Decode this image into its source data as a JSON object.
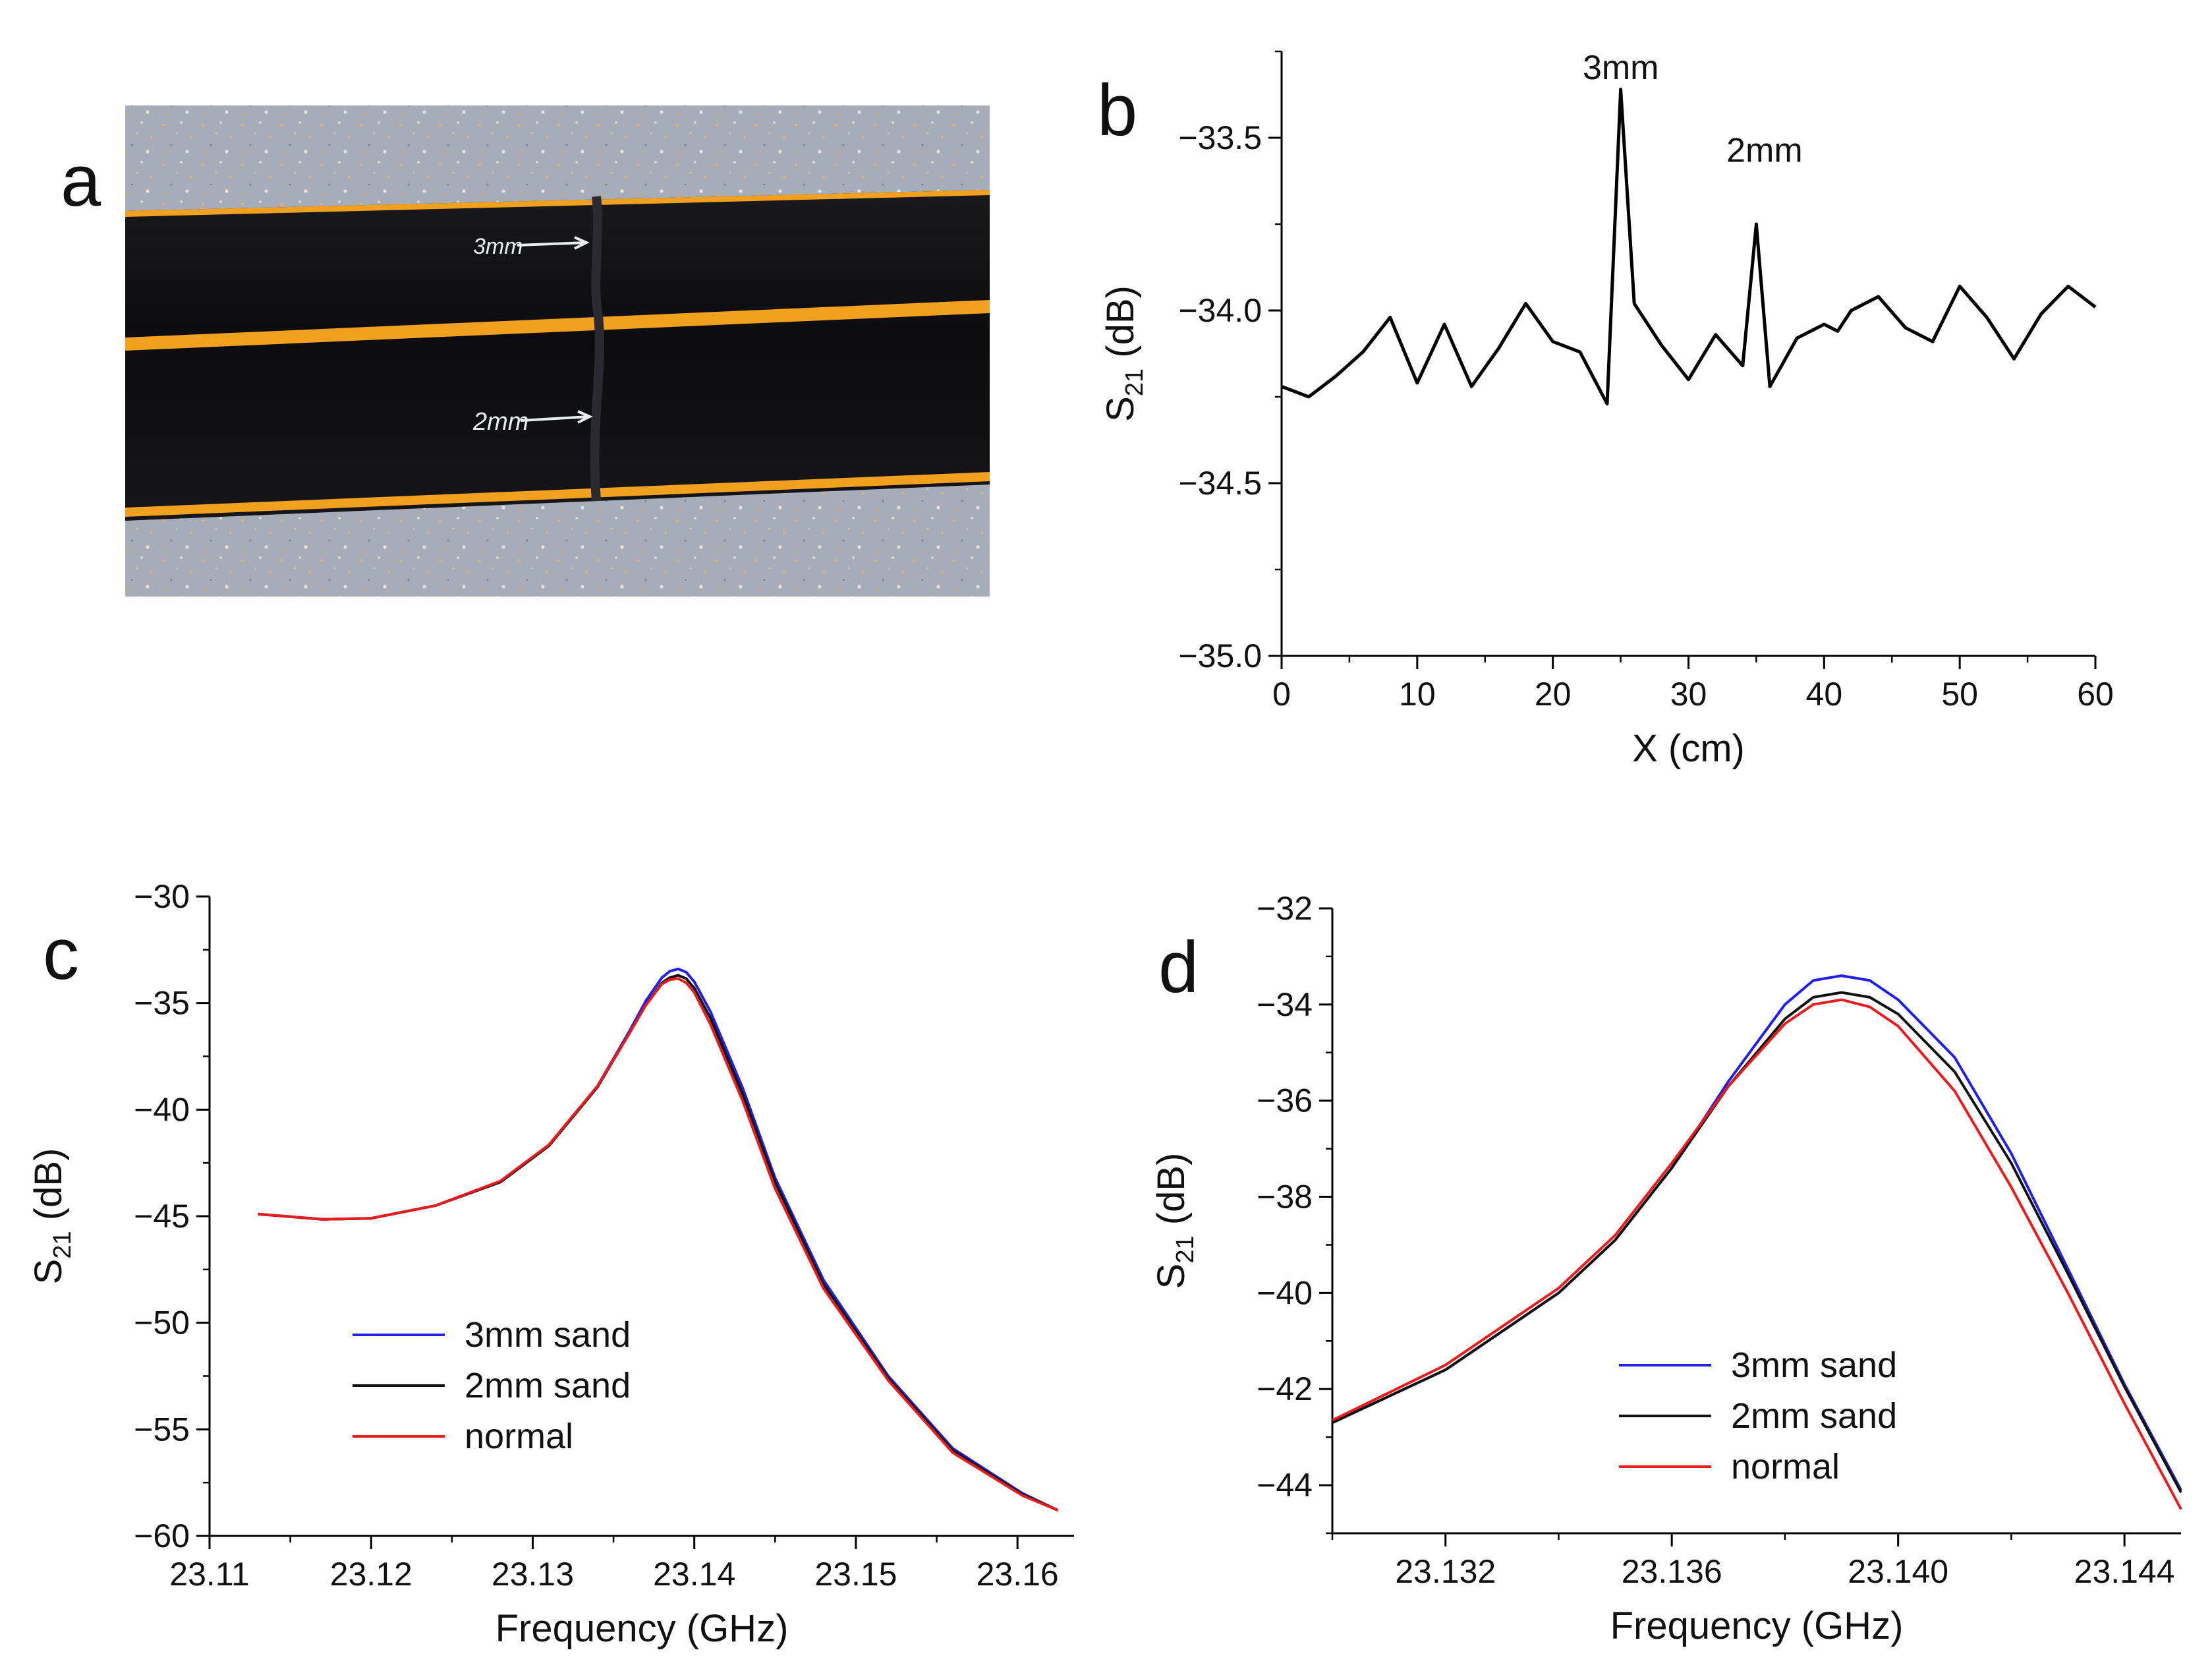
{
  "panel_labels": {
    "a": "a",
    "b": "b",
    "c": "c",
    "d": "d"
  },
  "photo": {
    "annotation_3mm": "3mm",
    "annotation_2mm": "2mm",
    "colors": {
      "background": "#a7adb8",
      "pipe": "#101012",
      "stripe": "#f1a020"
    }
  },
  "chart_data": [
    {
      "id": "b",
      "type": "line",
      "title": "",
      "xlabel": "X (cm)",
      "ylabel_main": "S",
      "ylabel_sub": "21",
      "ylabel_unit": " (dB)",
      "xlim": [
        0,
        60
      ],
      "ylim": [
        -35.0,
        -33.25
      ],
      "xticks": [
        0,
        10,
        20,
        30,
        40,
        50,
        60
      ],
      "xtick_labels": [
        "0",
        "10",
        "20",
        "30",
        "40",
        "50",
        "60"
      ],
      "yticks": [
        -35.0,
        -34.5,
        -34.0,
        -33.5
      ],
      "ytick_labels": [
        "−35.0",
        "−34.5",
        "−34.0",
        "−33.5"
      ],
      "annotations": [
        {
          "text": "3mm",
          "x": 22.2,
          "y": -33.33
        },
        {
          "text": "2mm",
          "x": 32.8,
          "y": -33.57
        }
      ],
      "series": [
        {
          "name": "S21",
          "color": "#000000",
          "x": [
            0,
            2,
            4,
            6,
            8,
            10,
            12,
            14,
            16,
            18,
            20,
            22,
            24,
            25,
            26,
            28,
            30,
            32,
            34,
            35,
            36,
            38,
            40,
            41,
            42,
            44,
            46,
            48,
            50,
            52,
            54,
            56,
            58,
            60
          ],
          "y": [
            -34.22,
            -34.25,
            -34.19,
            -34.12,
            -34.02,
            -34.21,
            -34.04,
            -34.22,
            -34.11,
            -33.98,
            -34.09,
            -34.12,
            -34.27,
            -33.36,
            -33.98,
            -34.1,
            -34.2,
            -34.07,
            -34.16,
            -33.75,
            -34.22,
            -34.08,
            -34.04,
            -34.06,
            -34.0,
            -33.96,
            -34.05,
            -34.09,
            -33.93,
            -34.02,
            -34.14,
            -34.01,
            -33.93,
            -33.99
          ]
        }
      ]
    },
    {
      "id": "c",
      "type": "line",
      "title": "",
      "xlabel": "Frequency (GHz)",
      "ylabel_main": "S",
      "ylabel_sub": "21",
      "ylabel_unit": " (dB)",
      "xlim": [
        23.11,
        23.1635
      ],
      "ylim": [
        -60,
        -30
      ],
      "xticks": [
        23.11,
        23.12,
        23.13,
        23.14,
        23.15,
        23.16
      ],
      "xtick_labels": [
        "23.11",
        "23.12",
        "23.13",
        "23.14",
        "23.15",
        "23.16"
      ],
      "yticks": [
        -60,
        -55,
        -50,
        -45,
        -40,
        -35,
        -30
      ],
      "ytick_labels": [
        "−60",
        "−55",
        "−50",
        "−45",
        "−40",
        "−35",
        "−30"
      ],
      "legend": {
        "position": "lower-left",
        "entries": [
          "3mm sand",
          "2mm sand",
          "normal"
        ]
      },
      "series": [
        {
          "name": "3mm sand",
          "color": "#1f1fe8",
          "x": [
            23.113,
            23.117,
            23.12,
            23.124,
            23.128,
            23.131,
            23.134,
            23.136,
            23.137,
            23.138,
            23.1385,
            23.139,
            23.1395,
            23.14,
            23.141,
            23.143,
            23.145,
            23.148,
            23.152,
            23.156,
            23.1603,
            23.1625
          ],
          "y": [
            -44.9,
            -45.15,
            -45.1,
            -44.5,
            -43.4,
            -41.7,
            -38.9,
            -36.3,
            -34.9,
            -33.8,
            -33.5,
            -33.4,
            -33.55,
            -34.0,
            -35.4,
            -39.0,
            -43.2,
            -48.0,
            -52.5,
            -55.9,
            -58.0,
            -58.8
          ]
        },
        {
          "name": "2mm sand",
          "color": "#111111",
          "x": [
            23.113,
            23.117,
            23.12,
            23.124,
            23.128,
            23.131,
            23.134,
            23.136,
            23.137,
            23.138,
            23.1385,
            23.139,
            23.1395,
            23.14,
            23.141,
            23.143,
            23.145,
            23.148,
            23.152,
            23.156,
            23.1603,
            23.1625
          ],
          "y": [
            -44.9,
            -45.15,
            -45.1,
            -44.5,
            -43.4,
            -41.7,
            -38.95,
            -36.4,
            -35.1,
            -34.05,
            -33.8,
            -33.7,
            -33.85,
            -34.3,
            -35.7,
            -39.3,
            -43.4,
            -48.2,
            -52.6,
            -56.0,
            -58.05,
            -58.8
          ]
        },
        {
          "name": "normal",
          "color": "#e81c1c",
          "x": [
            23.113,
            23.117,
            23.12,
            23.124,
            23.128,
            23.131,
            23.134,
            23.136,
            23.137,
            23.138,
            23.1385,
            23.139,
            23.1395,
            23.14,
            23.141,
            23.143,
            23.145,
            23.148,
            23.152,
            23.156,
            23.1603,
            23.1625
          ],
          "y": [
            -44.9,
            -45.15,
            -45.1,
            -44.5,
            -43.35,
            -41.65,
            -38.9,
            -36.4,
            -35.1,
            -34.1,
            -33.9,
            -33.85,
            -34.05,
            -34.5,
            -36.0,
            -39.6,
            -43.7,
            -48.4,
            -52.7,
            -56.1,
            -58.1,
            -58.8
          ]
        }
      ]
    },
    {
      "id": "d",
      "type": "line",
      "title": "",
      "xlabel": "Frequency (GHz)",
      "ylabel_main": "S",
      "ylabel_sub": "21",
      "ylabel_unit": " (dB)",
      "xlim": [
        23.13,
        23.145
      ],
      "ylim": [
        -45,
        -32
      ],
      "xticks": [
        23.132,
        23.136,
        23.14,
        23.144
      ],
      "xtick_labels": [
        "23.132",
        "23.136",
        "23.140",
        "23.144"
      ],
      "yticks": [
        -44,
        -42,
        -40,
        -38,
        -36,
        -34,
        -32
      ],
      "ytick_labels": [
        "−44",
        "−42",
        "−40",
        "−38",
        "−36",
        "−34",
        "−32"
      ],
      "legend": {
        "position": "lower-right",
        "entries": [
          "3mm sand",
          "2mm sand",
          "normal"
        ]
      },
      "series": [
        {
          "name": "3mm sand",
          "color": "#1f1fe8",
          "x": [
            23.13,
            23.132,
            23.134,
            23.135,
            23.136,
            23.137,
            23.138,
            23.1385,
            23.139,
            23.1395,
            23.14,
            23.141,
            23.142,
            23.143,
            23.144,
            23.145
          ],
          "y": [
            -42.7,
            -41.6,
            -40.0,
            -38.9,
            -37.4,
            -35.6,
            -34.0,
            -33.5,
            -33.4,
            -33.5,
            -33.9,
            -35.1,
            -37.1,
            -39.5,
            -41.9,
            -44.1
          ]
        },
        {
          "name": "2mm sand",
          "color": "#111111",
          "x": [
            23.13,
            23.132,
            23.134,
            23.135,
            23.136,
            23.137,
            23.138,
            23.1385,
            23.139,
            23.1395,
            23.14,
            23.141,
            23.142,
            23.143,
            23.144,
            23.145
          ],
          "y": [
            -42.7,
            -41.6,
            -40.0,
            -38.9,
            -37.4,
            -35.7,
            -34.3,
            -33.85,
            -33.75,
            -33.85,
            -34.2,
            -35.4,
            -37.3,
            -39.6,
            -41.95,
            -44.15
          ]
        },
        {
          "name": "normal",
          "color": "#e81c1c",
          "x": [
            23.13,
            23.132,
            23.134,
            23.135,
            23.136,
            23.137,
            23.138,
            23.1385,
            23.139,
            23.1395,
            23.14,
            23.141,
            23.142,
            23.143,
            23.144,
            23.145
          ],
          "y": [
            -42.65,
            -41.5,
            -39.9,
            -38.8,
            -37.3,
            -35.7,
            -34.4,
            -34.0,
            -33.9,
            -34.05,
            -34.45,
            -35.8,
            -37.8,
            -40.0,
            -42.3,
            -44.5
          ]
        }
      ]
    }
  ]
}
